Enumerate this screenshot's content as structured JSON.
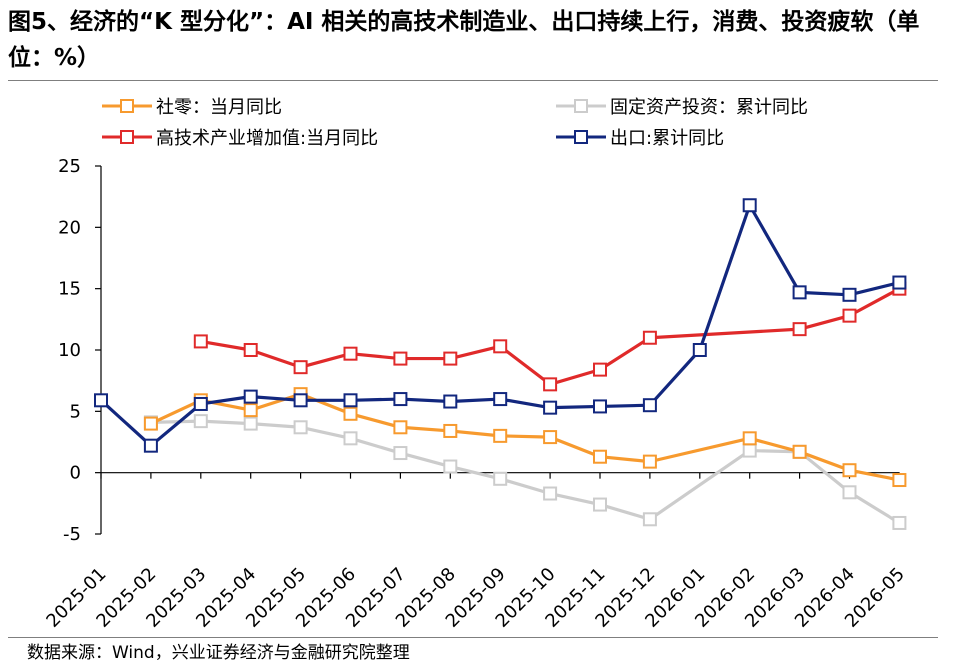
{
  "header": {
    "title": "图5、经济的“K 型分化”：AI 相关的高技术制造业、出口持续上行，消费、投资疲软（单位：%）"
  },
  "footer": {
    "source": "数据来源：Wind，兴业证券经济与金融研究院整理"
  },
  "chart_data": {
    "type": "line",
    "categories": [
      "2025-01",
      "2025-02",
      "2025-03",
      "2025-04",
      "2025-05",
      "2025-06",
      "2025-07",
      "2025-08",
      "2025-09",
      "2025-10",
      "2025-11",
      "2025-12",
      "2026-01",
      "2026-02",
      "2026-03",
      "2026-04",
      "2026-05"
    ],
    "ylim": [
      -5,
      25
    ],
    "yticks": [
      -5,
      0,
      5,
      10,
      15,
      20,
      25
    ],
    "xlabel": "",
    "ylabel": "",
    "legend": "top",
    "grid": false,
    "series": [
      {
        "name": "社零：当月同比",
        "color": "#f79a2e",
        "values": [
          null,
          4.0,
          5.9,
          5.1,
          6.4,
          4.8,
          3.7,
          3.4,
          3.0,
          2.9,
          1.3,
          0.9,
          null,
          2.8,
          1.7,
          0.2,
          -0.6
        ]
      },
      {
        "name": "固定资产投资：累计同比",
        "color": "#cccccc",
        "values": [
          null,
          4.1,
          4.2,
          4.0,
          3.7,
          2.8,
          1.6,
          0.5,
          -0.5,
          -1.7,
          -2.6,
          -3.8,
          null,
          1.8,
          1.7,
          -1.6,
          -4.1
        ]
      },
      {
        "name": "高技术产业增加值:当月同比",
        "color": "#e02a2a",
        "values": [
          null,
          null,
          10.7,
          10.0,
          8.6,
          9.7,
          9.3,
          9.3,
          10.3,
          7.2,
          8.4,
          11.0,
          null,
          null,
          11.7,
          12.8,
          15.0
        ]
      },
      {
        "name": "出口:累计同比",
        "color": "#12277e",
        "values": [
          5.9,
          2.2,
          5.6,
          6.2,
          5.9,
          5.9,
          6.0,
          5.8,
          6.0,
          5.3,
          5.4,
          5.5,
          10.0,
          21.8,
          14.7,
          14.5,
          15.5
        ]
      }
    ]
  }
}
